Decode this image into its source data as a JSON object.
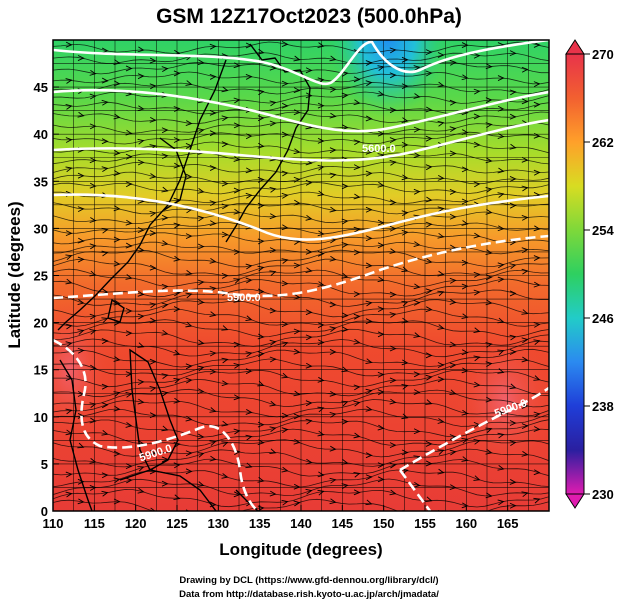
{
  "title": "GSM 12Z17Oct2023 (500.0hPa)",
  "xlabel": "Longitude (degrees)",
  "ylabel": "Latitude  (degrees)",
  "x_ticks": [
    "110",
    "115",
    "120",
    "125",
    "130",
    "135",
    "140",
    "145",
    "150",
    "155",
    "160",
    "165"
  ],
  "y_ticks": [
    "0",
    "5",
    "10",
    "15",
    "20",
    "25",
    "30",
    "35",
    "40",
    "45"
  ],
  "colorbar": {
    "ticks": [
      "270",
      "262",
      "254",
      "246",
      "238",
      "230"
    ],
    "colors": [
      "#e8334a",
      "#ff7733",
      "#ffb422",
      "#d8dc22",
      "#86d83a",
      "#2ed060",
      "#22ccc8",
      "#2b8af0",
      "#1f3ed8",
      "#2323a8",
      "#8a1fa8",
      "#e01cb0"
    ]
  },
  "contour_labels": [
    "5600.0",
    "5900.0",
    "5900.0",
    "5900.0"
  ],
  "credits": {
    "line1": "Drawing by DCL (https://www.gfd-dennou.org/library/dcl/)",
    "line2": "Data from http://database.rish.kyoto-u.ac.jp/arch/jmadata/"
  },
  "chart_data": {
    "type": "heatmap",
    "title": "GSM 12Z17Oct2023 (500.0hPa)",
    "xlabel": "Longitude (degrees)",
    "ylabel": "Latitude  (degrees)",
    "xlim": [
      110,
      170
    ],
    "ylim": [
      0,
      50
    ],
    "x_ticks": [
      110,
      115,
      120,
      125,
      130,
      135,
      140,
      145,
      150,
      155,
      160,
      165
    ],
    "y_ticks": [
      0,
      5,
      10,
      15,
      20,
      25,
      30,
      35,
      40,
      45
    ],
    "colorbar_range": [
      230,
      270
    ],
    "colorbar_ticks": [
      270,
      262,
      254,
      246,
      238,
      230
    ],
    "grid": true,
    "overlays": [
      "streamlines",
      "height contours",
      "coastlines"
    ],
    "contour_levels": [
      5600.0,
      5900.0
    ],
    "contour_label_positions": [
      {
        "level": 5600.0,
        "lon": 151,
        "lat": 41
      },
      {
        "level": 5900.0,
        "lon": 132,
        "lat": 24.5
      },
      {
        "level": 5900.0,
        "lon": 123,
        "lat": 6.5
      },
      {
        "level": 5900.0,
        "lon": 162,
        "lat": 11
      }
    ]
  }
}
